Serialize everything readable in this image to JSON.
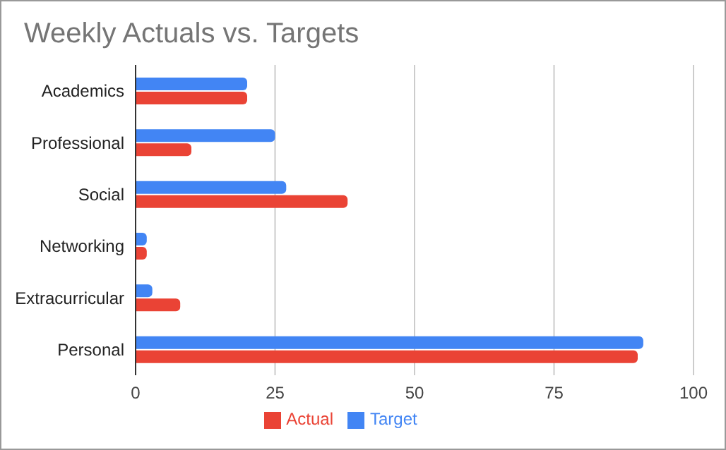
{
  "chart_data": {
    "type": "bar",
    "orientation": "horizontal",
    "title": "Weekly Actuals vs. Targets",
    "categories": [
      "Academics",
      "Professional",
      "Social",
      "Networking",
      "Extracurricular",
      "Personal"
    ],
    "series": [
      {
        "name": "Target",
        "color": "#4285f4",
        "values": [
          20,
          25,
          27,
          2,
          3,
          91
        ]
      },
      {
        "name": "Actual",
        "color": "#ea4335",
        "values": [
          20,
          10,
          38,
          2,
          8,
          90
        ]
      }
    ],
    "xlim": [
      0,
      100
    ],
    "xticks": [
      0,
      25,
      50,
      75,
      100
    ],
    "grid": "x",
    "legend": "bottom"
  }
}
